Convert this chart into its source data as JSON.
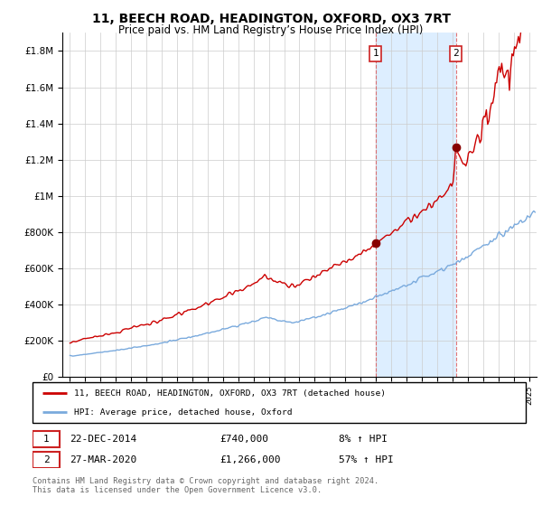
{
  "title": "11, BEECH ROAD, HEADINGTON, OXFORD, OX3 7RT",
  "subtitle": "Price paid vs. HM Land Registry’s House Price Index (HPI)",
  "ylabel_ticks": [
    "£0",
    "£200K",
    "£400K",
    "£600K",
    "£800K",
    "£1M",
    "£1.2M",
    "£1.4M",
    "£1.6M",
    "£1.8M"
  ],
  "ytick_values": [
    0,
    200000,
    400000,
    600000,
    800000,
    1000000,
    1200000,
    1400000,
    1600000,
    1800000
  ],
  "ylim": [
    0,
    1900000
  ],
  "xlim_start": 1994.5,
  "xlim_end": 2025.5,
  "sale1_x": 2014.97,
  "sale1_y": 740000,
  "sale2_x": 2020.23,
  "sale2_y": 1266000,
  "legend_line1": "11, BEECH ROAD, HEADINGTON, OXFORD, OX3 7RT (detached house)",
  "legend_line2": "HPI: Average price, detached house, Oxford",
  "sale1_date": "22-DEC-2014",
  "sale1_price": "£740,000",
  "sale1_hpi": "8% ↑ HPI",
  "sale2_date": "27-MAR-2020",
  "sale2_price": "£1,266,000",
  "sale2_hpi": "57% ↑ HPI",
  "footer": "Contains HM Land Registry data © Crown copyright and database right 2024.\nThis data is licensed under the Open Government Licence v3.0.",
  "line_color_property": "#cc0000",
  "line_color_hpi": "#7aaadd",
  "shade_color": "#ddeeff",
  "grid_color": "#cccccc",
  "background_color": "#ffffff"
}
